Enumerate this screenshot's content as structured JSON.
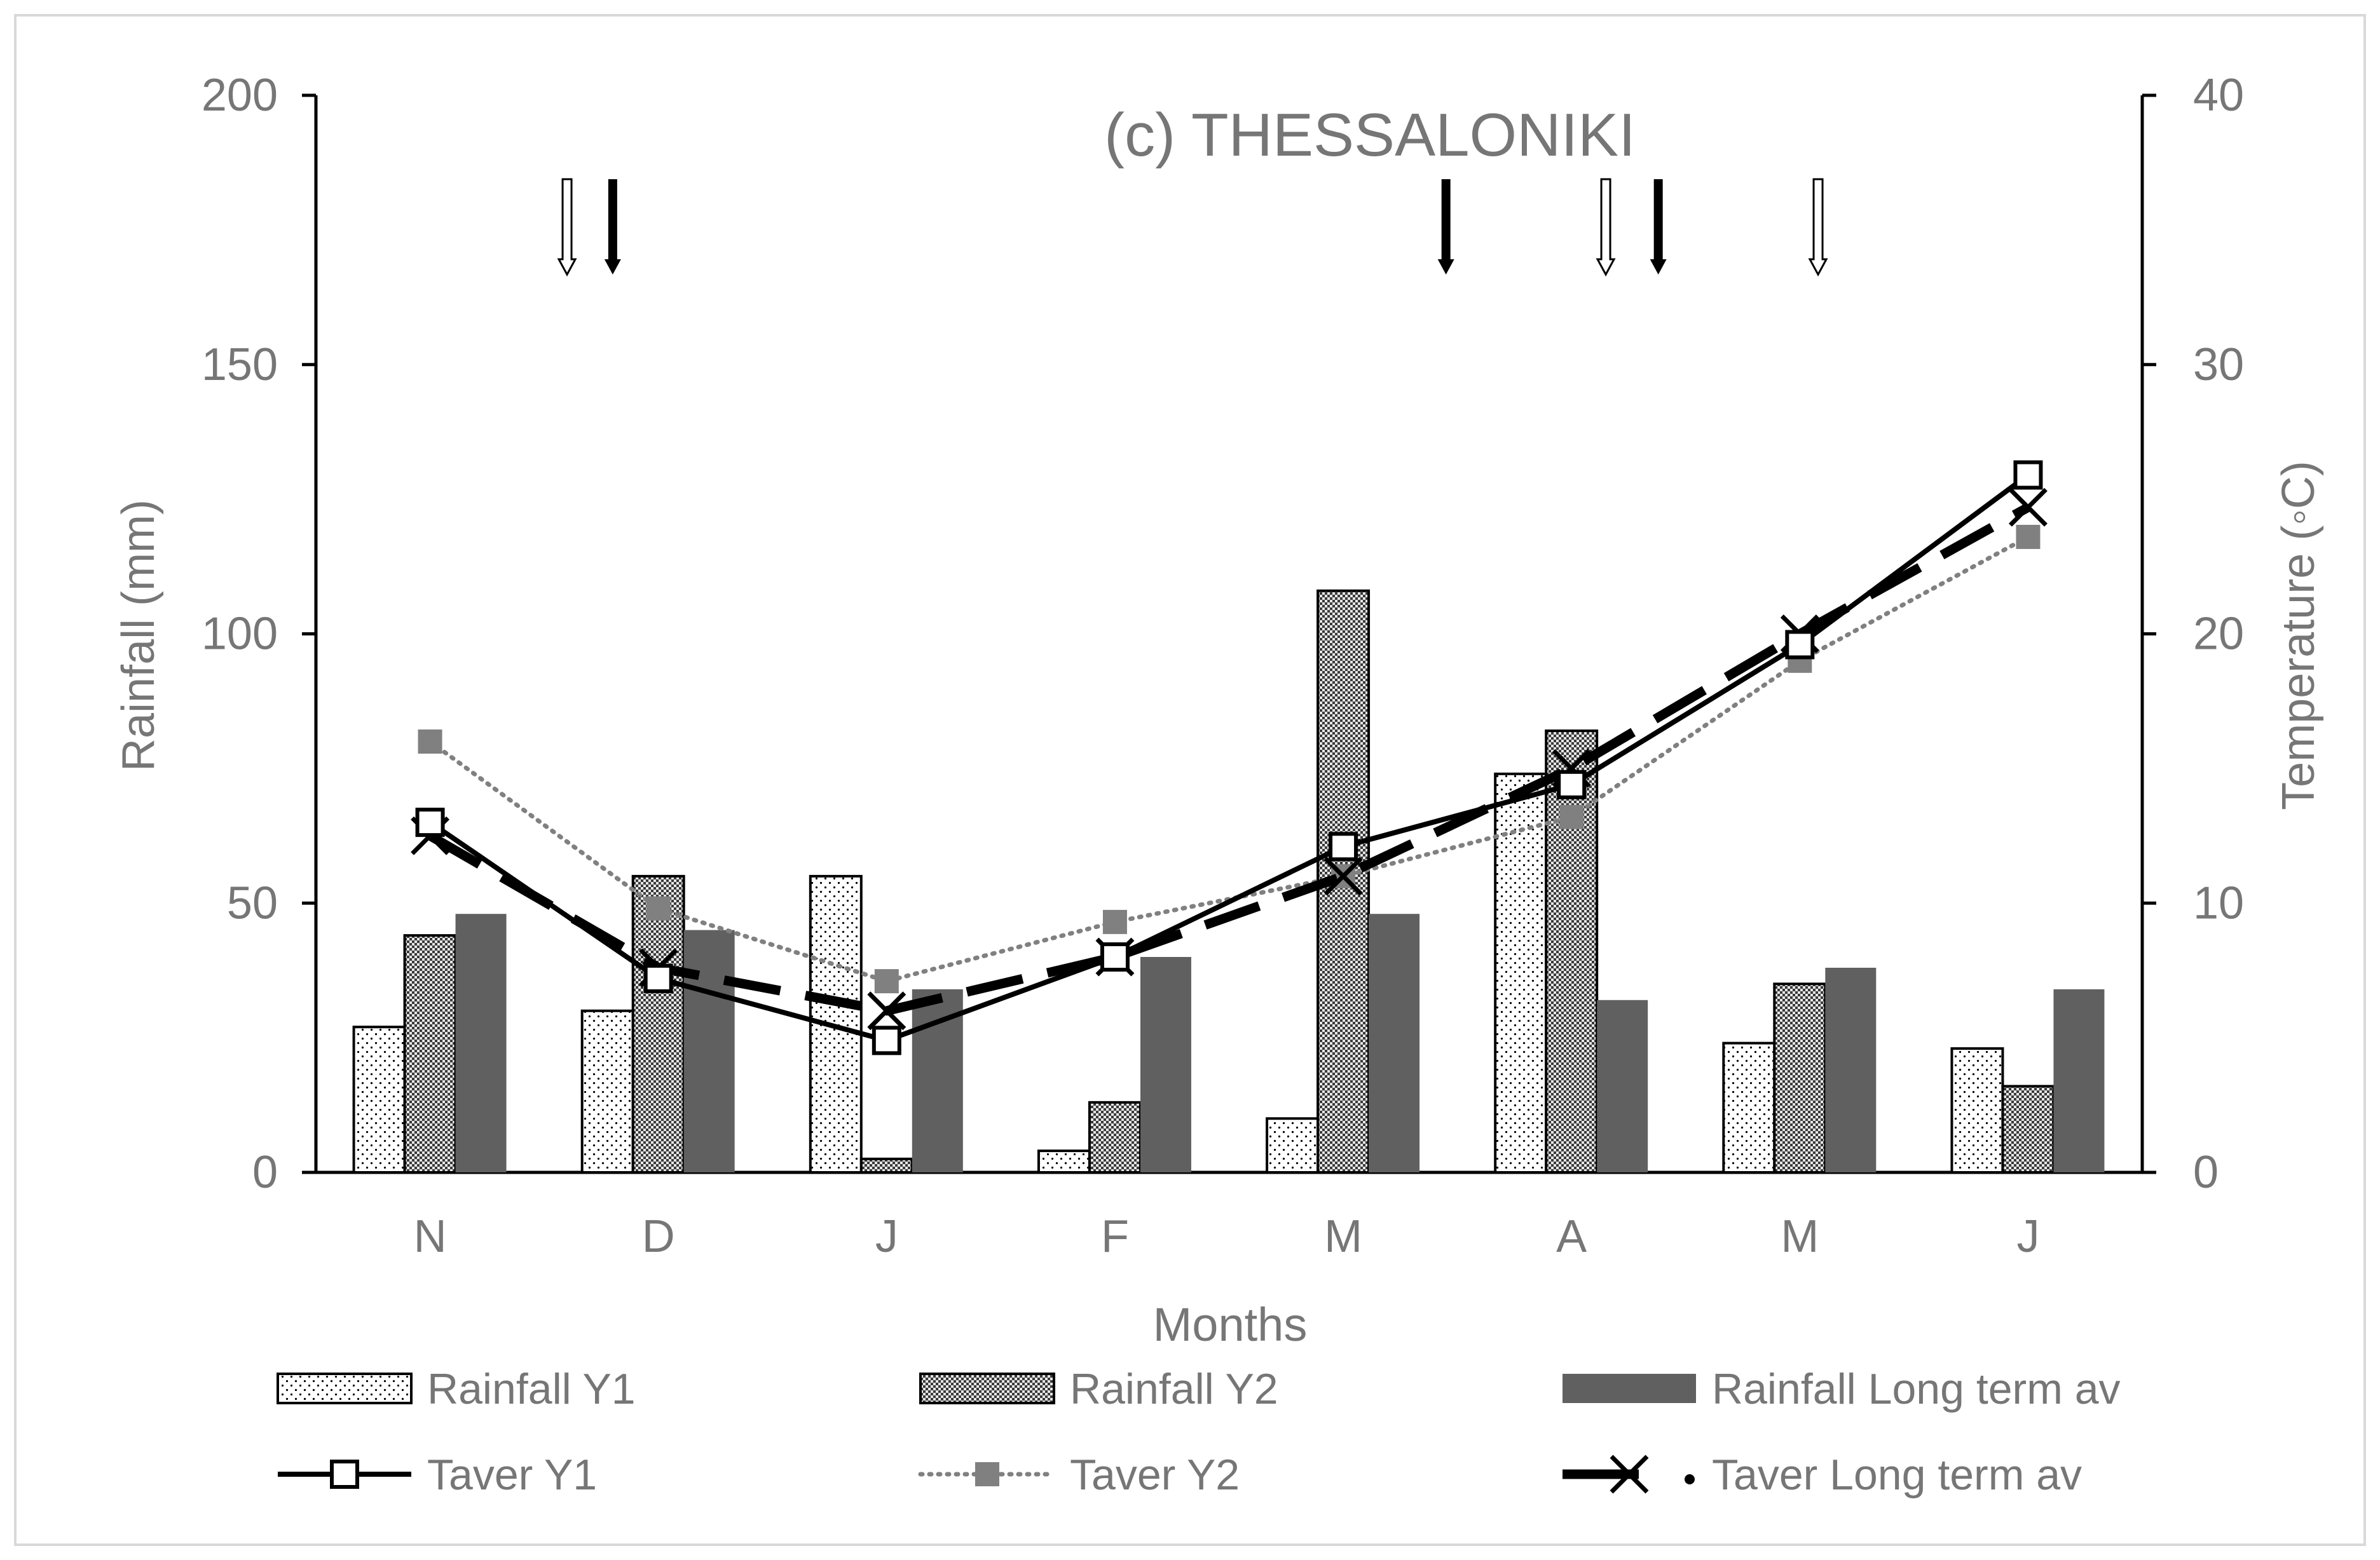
{
  "chart_data": {
    "type": "bar+line",
    "title": "(c) THESSALONIKI",
    "xlabel": "Months",
    "ylabel_left": "Rainfall (mm)",
    "ylabel_right": "Temperature (◦C)",
    "categories": [
      "N",
      "D",
      "J",
      "F",
      "M",
      "A",
      "M",
      "J"
    ],
    "y_left_range": [
      0,
      200
    ],
    "y_left_ticks": [
      "0",
      "50",
      "100",
      "150",
      "200"
    ],
    "y_right_range": [
      0,
      40
    ],
    "y_right_ticks": [
      "0",
      "10",
      "20",
      "30",
      "40"
    ],
    "bar_series": [
      {
        "name": "Rainfall Y1",
        "values": [
          27,
          30,
          55,
          4,
          10,
          74,
          24,
          23
        ],
        "pattern": "dots"
      },
      {
        "name": "Rainfall Y2",
        "values": [
          44,
          55,
          2.5,
          13,
          108,
          82,
          35,
          16
        ],
        "pattern": "checker"
      },
      {
        "name": "Rainfall Long term av",
        "values": [
          48,
          45,
          34,
          40,
          48,
          32,
          38,
          34
        ],
        "pattern": "solid"
      }
    ],
    "line_series": [
      {
        "name": "Taver Y1",
        "values": [
          13,
          7.2,
          4.9,
          8.0,
          12.1,
          14.4,
          19.6,
          25.9
        ],
        "style": "solid-square"
      },
      {
        "name": "Taver Y2",
        "values": [
          16,
          9.8,
          7.1,
          9.3,
          11.0,
          13.2,
          19.0,
          23.6
        ],
        "style": "dotted-filled-square"
      },
      {
        "name": "Taver Long term av",
        "values": [
          12.5,
          7.6,
          6.0,
          8.0,
          11.0,
          15.0,
          20.0,
          24.7
        ],
        "style": "dashed-x"
      }
    ],
    "arrows": [
      {
        "type": "hollow",
        "x_pos": 0.6
      },
      {
        "type": "filled",
        "x_pos": 0.8
      },
      {
        "type": "filled",
        "x_pos": 4.45
      },
      {
        "type": "hollow",
        "x_pos": 5.15
      },
      {
        "type": "filled",
        "x_pos": 5.38
      },
      {
        "type": "hollow",
        "x_pos": 6.08
      }
    ],
    "legend_position": "bottom",
    "colors": {
      "axis": "#000000",
      "text": "#767676",
      "long_term_bar": "#606060",
      "taver_y2": "#808080",
      "line": "#000000"
    }
  }
}
